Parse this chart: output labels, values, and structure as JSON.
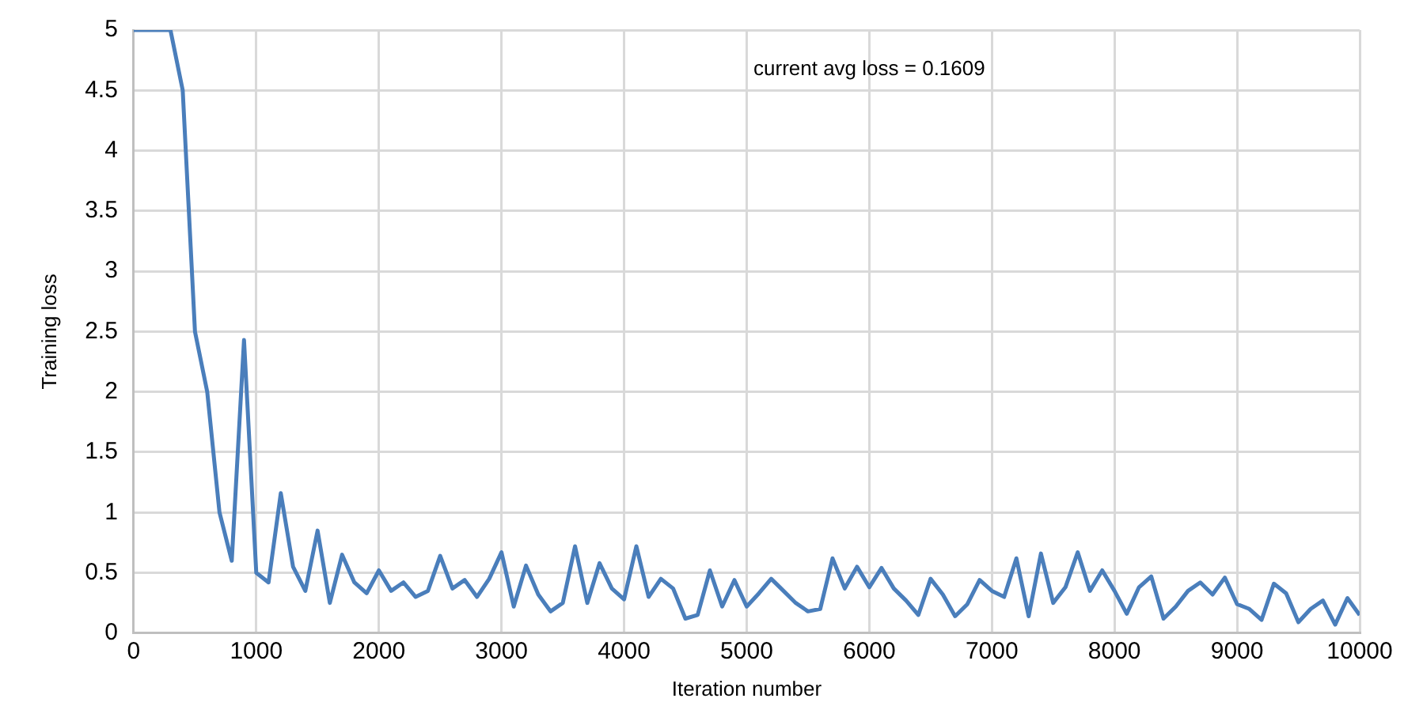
{
  "chart_data": {
    "type": "line",
    "xlabel": "Iteration number",
    "ylabel": "Training loss",
    "annotations": [
      "current avg loss = 0.1609"
    ],
    "x": [
      0,
      100,
      200,
      300,
      400,
      500,
      600,
      700,
      800,
      900,
      1000,
      1100,
      1200,
      1300,
      1400,
      1500,
      1600,
      1700,
      1800,
      1900,
      2000,
      2100,
      2200,
      2300,
      2400,
      2500,
      2600,
      2700,
      2800,
      2900,
      3000,
      3100,
      3200,
      3300,
      3400,
      3500,
      3600,
      3700,
      3800,
      3900,
      4000,
      4100,
      4200,
      4300,
      4400,
      4500,
      4600,
      4700,
      4800,
      4900,
      5000,
      5100,
      5200,
      5300,
      5400,
      5500,
      5600,
      5700,
      5800,
      5900,
      6000,
      6100,
      6200,
      6300,
      6400,
      6500,
      6600,
      6700,
      6800,
      6900,
      7000,
      7100,
      7200,
      7300,
      7400,
      7500,
      7600,
      7700,
      7800,
      7900,
      8000,
      8100,
      8200,
      8300,
      8400,
      8500,
      8600,
      8700,
      8800,
      8900,
      9000,
      9100,
      9200,
      9300,
      9400,
      9500,
      9600,
      9700,
      9800,
      9900,
      10000
    ],
    "series": [
      {
        "color": "#4a7ebb",
        "values": [
          5,
          5,
          5,
          5,
          4.5,
          2.5,
          2.0,
          1.0,
          0.6,
          2.43,
          0.5,
          0.42,
          1.16,
          0.55,
          0.35,
          0.85,
          0.25,
          0.65,
          0.42,
          0.33,
          0.52,
          0.35,
          0.42,
          0.3,
          0.35,
          0.64,
          0.37,
          0.44,
          0.3,
          0.45,
          0.67,
          0.22,
          0.56,
          0.32,
          0.18,
          0.25,
          0.72,
          0.25,
          0.58,
          0.37,
          0.28,
          0.72,
          0.3,
          0.45,
          0.37,
          0.12,
          0.15,
          0.52,
          0.22,
          0.44,
          0.22,
          0.33,
          0.45,
          0.35,
          0.25,
          0.18,
          0.2,
          0.62,
          0.37,
          0.55,
          0.38,
          0.54,
          0.37,
          0.27,
          0.15,
          0.45,
          0.32,
          0.14,
          0.24,
          0.44,
          0.35,
          0.3,
          0.62,
          0.14,
          0.66,
          0.25,
          0.38,
          0.67,
          0.35,
          0.52,
          0.35,
          0.16,
          0.38,
          0.47,
          0.12,
          0.22,
          0.35,
          0.42,
          0.32,
          0.46,
          0.24,
          0.2,
          0.11,
          0.41,
          0.33,
          0.09,
          0.2,
          0.27,
          0.07,
          0.29,
          0.15
        ]
      }
    ],
    "xlim": [
      0,
      10000
    ],
    "xticks": [
      0,
      1000,
      2000,
      3000,
      4000,
      5000,
      6000,
      7000,
      8000,
      9000,
      10000
    ],
    "ylim": [
      0,
      5
    ],
    "yticks": [
      0,
      0.5,
      1,
      1.5,
      2,
      2.5,
      3,
      3.5,
      4,
      4.5,
      5
    ],
    "grid": true,
    "marker": "none",
    "line_style": "solid"
  }
}
